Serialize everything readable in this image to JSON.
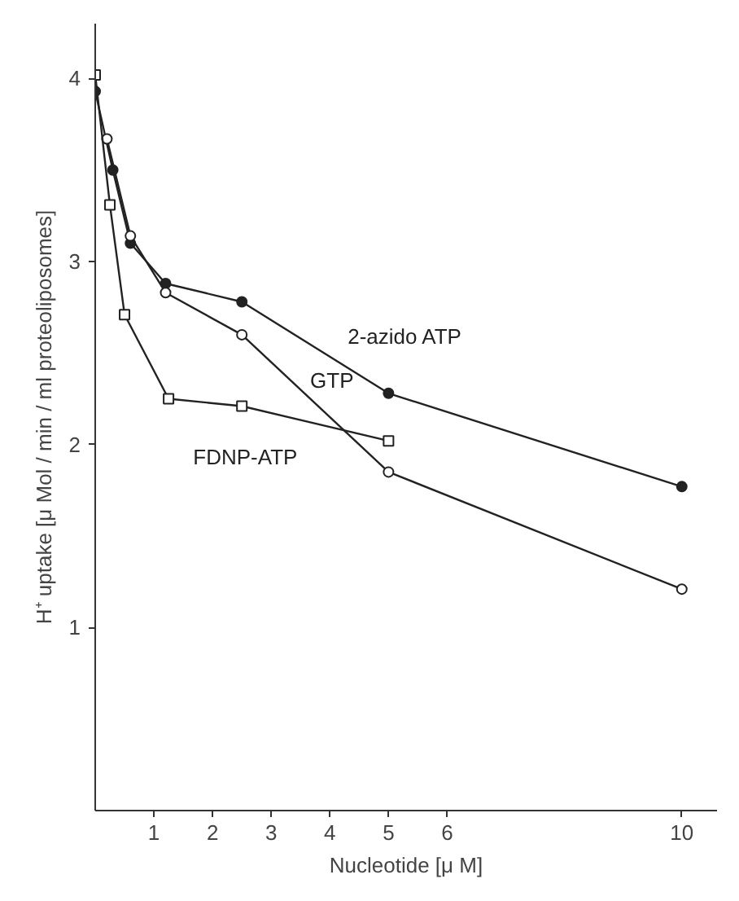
{
  "chart_data": {
    "type": "line",
    "xlabel": "Nucleotide [μ M]",
    "ylabel": "H⁺ uptake [μ Mol / min / ml proteoliposomes]",
    "xlim": [
      0,
      10.6
    ],
    "xticks": [
      1,
      2,
      3,
      4,
      5,
      6,
      10
    ],
    "ylim": [
      0,
      4.3
    ],
    "yticks": [
      1,
      2,
      3,
      4
    ],
    "grid": false,
    "line_style": "solid",
    "series": [
      {
        "name": "2-azido ATP",
        "color": "#222222",
        "marker": "circle",
        "x": [
          0,
          0.3,
          0.6,
          1.2,
          2.5,
          5,
          10
        ],
        "values": [
          3.93,
          3.5,
          3.1,
          2.88,
          2.78,
          2.28,
          1.77
        ]
      },
      {
        "name": "GTP",
        "color": "#222222",
        "marker": "circle",
        "x": [
          0.2,
          0.6,
          1.2,
          2.5,
          5,
          10
        ],
        "values": [
          3.67,
          3.14,
          2.83,
          2.6,
          1.85,
          1.21
        ]
      },
      {
        "name": "FDNP-ATP",
        "color": "#222222",
        "marker": "square",
        "x": [
          0,
          0.25,
          0.5,
          1.25,
          2.5,
          5
        ],
        "values": [
          4.02,
          3.31,
          2.71,
          2.25,
          2.21,
          2.02
        ]
      }
    ]
  }
}
